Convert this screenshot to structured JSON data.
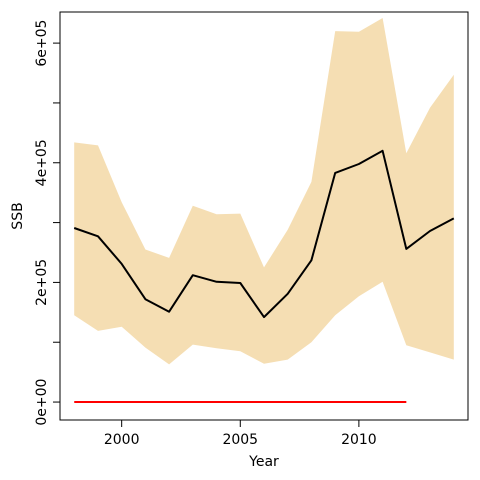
{
  "chart_data": {
    "type": "line",
    "title": "",
    "xlabel": "Year",
    "ylabel": "SSB",
    "xlim": [
      1997.4,
      2014.6
    ],
    "ylim": [
      -30000,
      652000
    ],
    "x_ticks": [
      2000,
      2005,
      2010
    ],
    "x_tick_labels": [
      "2000",
      "2005",
      "2010"
    ],
    "y_ticks": [
      0,
      100000,
      200000,
      300000,
      400000,
      500000,
      600000
    ],
    "y_tick_labels": [
      "0e+00",
      "",
      "2e+05",
      "",
      "4e+05",
      "",
      "6e+05"
    ],
    "grid": false,
    "colors": {
      "band": "#f5deb3",
      "median": "#000000",
      "reference": "#ff0000"
    },
    "series": [
      {
        "role": "confidence band",
        "x": [
          1998,
          1999,
          2000,
          2001,
          2002,
          2003,
          2004,
          2005,
          2006,
          2007,
          2008,
          2009,
          2010,
          2011,
          2012,
          2013,
          2014
        ],
        "lower": [
          145000,
          119000,
          126000,
          91000,
          63000,
          96000,
          90000,
          85000,
          64000,
          71000,
          100000,
          145000,
          177000,
          201000,
          95000,
          83000,
          71000
        ],
        "upper": [
          434000,
          429000,
          334000,
          255000,
          241000,
          328000,
          314000,
          315000,
          225000,
          288000,
          368000,
          620000,
          619000,
          642000,
          416000,
          492000,
          547000
        ]
      },
      {
        "role": "median",
        "x": [
          1998,
          1999,
          2000,
          2001,
          2002,
          2003,
          2004,
          2005,
          2006,
          2007,
          2008,
          2009,
          2010,
          2011,
          2012,
          2013,
          2014
        ],
        "values": [
          291000,
          277000,
          231000,
          172000,
          151000,
          212000,
          201000,
          199000,
          142000,
          181000,
          237000,
          383000,
          398000,
          420000,
          256000,
          286000,
          307000
        ]
      },
      {
        "role": "reference line",
        "x": [
          1998,
          2012
        ],
        "values": [
          0,
          0
        ]
      }
    ]
  }
}
